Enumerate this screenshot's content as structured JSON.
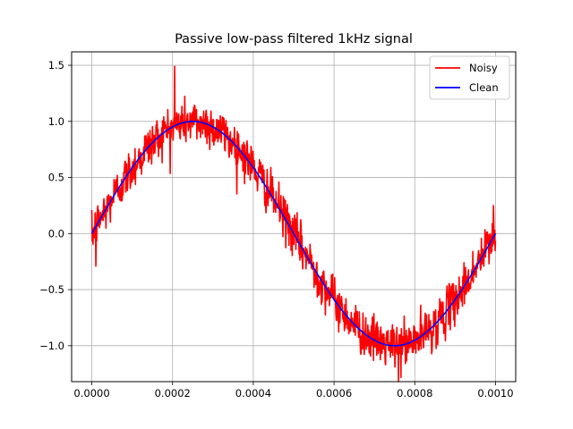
{
  "chart_data": {
    "type": "line",
    "title": "Passive low-pass filtered 1kHz signal",
    "xlabel": "",
    "ylabel": "",
    "xlim": [
      -5e-05,
      0.00105
    ],
    "ylim": [
      -1.32,
      1.62
    ],
    "grid": true,
    "legend_position": "upper right",
    "x_ticks": [
      0.0,
      0.0002,
      0.0004,
      0.0006,
      0.0008,
      0.001
    ],
    "x_tick_labels": [
      "0.0000",
      "0.0002",
      "0.0004",
      "0.0006",
      "0.0008",
      "0.0010"
    ],
    "y_ticks": [
      -1.0,
      -0.5,
      0.0,
      0.5,
      1.0,
      1.5
    ],
    "y_tick_labels": [
      "−1.0",
      "−0.5",
      "0.0",
      "0.5",
      "1.0",
      "1.5"
    ],
    "series": [
      {
        "name": "Noisy",
        "color": "#ff0000",
        "kind": "noisy-sine",
        "frequency_hz": 1000,
        "amplitude": 1.0,
        "x_start": 0.0,
        "x_end": 0.001,
        "samples": 1000,
        "noise_std": 0.1,
        "highlights": [
          {
            "x": 0.0,
            "y": 0.21
          },
          {
            "x": 1e-05,
            "y": -0.29
          },
          {
            "x": 0.000205,
            "y": 1.49
          },
          {
            "x": 0.00076,
            "y": -1.32
          },
          {
            "x": 0.000995,
            "y": 0.25
          }
        ]
      },
      {
        "name": "Clean",
        "color": "#0000ff",
        "kind": "sine",
        "frequency_hz": 1000,
        "amplitude": 1.0,
        "x_start": 0.0,
        "x_end": 0.001,
        "samples": 400
      }
    ]
  }
}
